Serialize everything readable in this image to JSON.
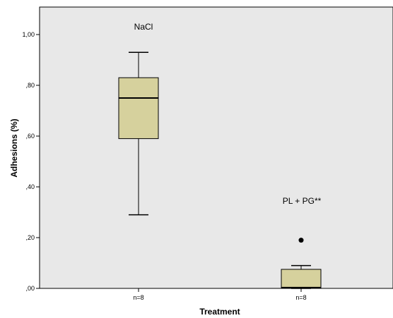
{
  "chart_data": {
    "type": "box",
    "xlabel": "Treatment",
    "ylabel": "Adhesions (%)",
    "ylim": [
      0.0,
      1.1
    ],
    "yticks": [
      {
        "value": 0.0,
        "label": ",00"
      },
      {
        "value": 0.2,
        "label": ",20"
      },
      {
        "value": 0.4,
        "label": ",40"
      },
      {
        "value": 0.6,
        "label": ",60"
      },
      {
        "value": 0.8,
        "label": ",80"
      },
      {
        "value": 1.0,
        "label": "1,00"
      }
    ],
    "grid": false,
    "plot_background": "#e8e8e8",
    "box_fill": "#d6d19d",
    "groups": [
      {
        "tick_label": "n=8",
        "annotation": "NaCl",
        "annotation_value": 1.03,
        "whisker_low": 0.29,
        "q1": 0.59,
        "median": 0.75,
        "q3": 0.83,
        "whisker_high": 0.93,
        "outliers": []
      },
      {
        "tick_label": "n=8",
        "annotation": "PL + PG**",
        "annotation_value": 0.345,
        "whisker_low": 0.0,
        "q1": 0.002,
        "median": 0.003,
        "q3": 0.075,
        "whisker_high": 0.09,
        "outliers": [
          0.19
        ]
      }
    ]
  }
}
